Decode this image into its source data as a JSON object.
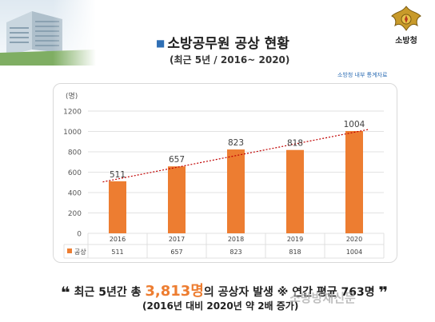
{
  "header": {
    "title": "소방공무원 공상 현황",
    "subtitle": "(최근 5년 / 2016~ 2020)",
    "source": "소방청 내부 통계자료",
    "emblem_label": "소방청"
  },
  "chart_data": {
    "type": "bar",
    "unit_label": "(명)",
    "categories": [
      "2016",
      "2017",
      "2018",
      "2019",
      "2020"
    ],
    "series": [
      {
        "name": "공상",
        "values": [
          511,
          657,
          823,
          818,
          1004
        ],
        "color": "#ed7d31"
      }
    ],
    "ylim": [
      0,
      1200
    ],
    "yticks": [
      "0",
      "200",
      "400",
      "600",
      "800",
      "1000",
      "1200"
    ],
    "data_labels": [
      "511",
      "657",
      "823",
      "818",
      "1004"
    ],
    "data_table": true,
    "trendline": {
      "type": "linear",
      "color": "#c00000",
      "style": "dotted"
    },
    "grid": true
  },
  "footer": {
    "line1_open_quote": "❝",
    "line1_pre": " 최근 5년간 총 ",
    "line1_total": "3,813명",
    "line1_post": "의 공상자 발생 ※ 연간 평균 763명",
    "line1_close_quote": "❞",
    "line2": "(2016년 대비 2020년 약 2배 증가)",
    "watermark": "소방방재신문"
  },
  "colors": {
    "accent": "#ed7d31",
    "title_mark": "#2f6fb5",
    "trend": "#c00000"
  }
}
